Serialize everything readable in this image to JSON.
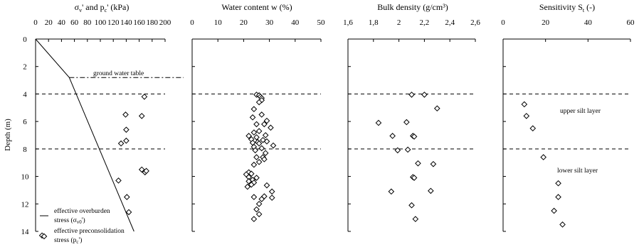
{
  "y_axis": {
    "label": "Depth (m)",
    "ticks": [
      0,
      2,
      4,
      6,
      8,
      10,
      12,
      14
    ],
    "range": [
      0,
      14
    ]
  },
  "layer_boundaries": [
    4,
    8
  ],
  "panels": [
    {
      "key": "stress",
      "xlim": [
        0,
        200
      ],
      "ticks": [
        0,
        20,
        40,
        60,
        80,
        100,
        120,
        140,
        160,
        180,
        200
      ]
    },
    {
      "key": "water",
      "title": "Water content w (%)",
      "xlim": [
        0,
        50
      ],
      "ticks": [
        0,
        10,
        20,
        30,
        40,
        50
      ]
    },
    {
      "key": "density",
      "title": "Bulk density (g/cm³)",
      "xlim": [
        1.6,
        2.6
      ],
      "ticks": [
        "1,6",
        "1,8",
        "2",
        "2,2",
        "2,4",
        "2,6"
      ],
      "tick_values": [
        1.6,
        1.8,
        2.0,
        2.2,
        2.4,
        2.6
      ]
    },
    {
      "key": "sensitivity",
      "xlim": [
        0,
        60
      ],
      "ticks": [
        0,
        20,
        40,
        60
      ]
    }
  ],
  "titles": {
    "stress": {
      "a": "σ",
      "b": "v",
      "c": "' and p",
      "d": "c",
      "e": "' (kPa)"
    },
    "sensitivity": {
      "a": "Sensitivity S",
      "b": "t",
      "c": " (-)"
    }
  },
  "annotations": {
    "gwt": "ground water table",
    "upper": "upper silt layer",
    "lower": "lower silt layer"
  },
  "legend": {
    "line_1": "effective overburden",
    "line_2a": "stress (σ",
    "line_2b": "v0",
    "line_2c": "')",
    "marker_1": "effective preconsolidation",
    "marker_2a": "stress (p",
    "marker_2b": "c",
    "marker_2c": "')"
  },
  "chart_data": [
    {
      "type": "scatter",
      "title": "σv' and pc' (kPa)",
      "xlabel": "σv' and pc' (kPa)",
      "ylabel": "Depth (m)",
      "xlim": [
        0,
        200
      ],
      "ylim": [
        14,
        0
      ],
      "ground_water_table_depth": 2.8,
      "series": [
        {
          "name": "effective overburden stress (σv0')",
          "type": "line",
          "x": [
            0,
            52,
            152
          ],
          "y": [
            0,
            2.8,
            14
          ]
        },
        {
          "name": "effective preconsolidation stress (pc')",
          "type": "scatter",
          "x": [
            168,
            139,
            164,
            140,
            132,
            140,
            164,
            169,
            171,
            128,
            141,
            144,
            10
          ],
          "y": [
            4.2,
            5.5,
            5.6,
            6.6,
            7.6,
            7.4,
            9.5,
            9.7,
            9.6,
            10.3,
            11.5,
            12.6,
            14.3
          ]
        }
      ]
    },
    {
      "type": "scatter",
      "title": "Water content w (%)",
      "xlabel": "Water content w (%)",
      "ylabel": "Depth (m)",
      "xlim": [
        0,
        50
      ],
      "ylim": [
        14,
        0
      ],
      "series": [
        {
          "name": "w",
          "x": [
            25,
            26,
            26.5,
            27,
            27,
            26,
            24,
            27,
            23.5,
            29,
            28,
            25,
            30.5,
            26,
            24,
            28.5,
            22,
            25,
            23,
            27.5,
            29,
            25.5,
            23.5,
            26,
            31.5,
            24,
            27,
            24.5,
            28.5,
            27.5,
            25,
            28,
            26,
            24,
            22,
            23,
            21,
            22,
            25,
            23.5,
            22,
            24,
            23,
            29,
            21.5,
            31,
            28,
            24,
            27,
            31,
            26,
            25,
            26,
            24
          ],
          "y": [
            4.05,
            4.1,
            4.2,
            4.3,
            4.45,
            4.6,
            5.1,
            5.5,
            5.7,
            5.95,
            6.2,
            6.2,
            6.45,
            6.7,
            6.8,
            7.0,
            7.05,
            7.15,
            7.3,
            7.35,
            7.45,
            7.5,
            7.55,
            7.6,
            7.75,
            7.85,
            7.95,
            8.1,
            8.3,
            8.6,
            8.6,
            8.75,
            8.95,
            9.15,
            9.7,
            9.8,
            9.85,
            10.05,
            10.1,
            10.25,
            10.35,
            10.45,
            10.6,
            10.65,
            10.75,
            11.1,
            11.45,
            11.5,
            11.65,
            11.55,
            12.0,
            12.4,
            12.75,
            13.1
          ]
        }
      ]
    },
    {
      "type": "scatter",
      "title": "Bulk density (g/cm³)",
      "xlabel": "Bulk density (g/cm³)",
      "ylabel": "Depth (m)",
      "xlim": [
        1.6,
        2.6
      ],
      "ylim": [
        14,
        0
      ],
      "series": [
        {
          "name": "bulk density",
          "x": [
            2.1,
            2.2,
            2.3,
            1.84,
            2.06,
            1.95,
            2.11,
            2.12,
            2.07,
            1.99,
            2.15,
            2.27,
            2.11,
            2.12,
            1.94,
            2.25,
            2.1,
            2.13
          ],
          "y": [
            4.05,
            4.05,
            5.05,
            6.1,
            6.05,
            7.05,
            7.05,
            7.1,
            8.05,
            8.1,
            9.05,
            9.1,
            10.05,
            10.1,
            11.1,
            11.05,
            12.1,
            13.1
          ]
        }
      ]
    },
    {
      "type": "scatter",
      "title": "Sensitivity St (-)",
      "xlabel": "Sensitivity St (-)",
      "ylabel": "Depth (m)",
      "xlim": [
        0,
        60
      ],
      "ylim": [
        14,
        0
      ],
      "series": [
        {
          "name": "sensitivity",
          "x": [
            10,
            11,
            14,
            19,
            26,
            26,
            24,
            28
          ],
          "y": [
            4.75,
            5.6,
            6.5,
            8.6,
            10.5,
            11.5,
            12.5,
            13.5
          ]
        }
      ]
    }
  ]
}
